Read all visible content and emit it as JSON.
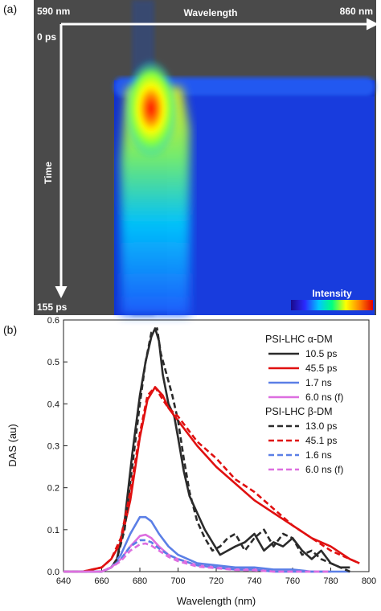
{
  "panel_a": {
    "label": "(a)",
    "wl_start": "590 nm",
    "wl_axis": "Wavelength",
    "wl_end": "860 nm",
    "time_start": "0 ps",
    "time_axis": "Time",
    "time_end": "155 ps",
    "intensity_label": "Intensity",
    "colormap": [
      "#1a0a8a",
      "#2a2aff",
      "#00c8ff",
      "#00ff80",
      "#ffff00",
      "#ff8000",
      "#e00000"
    ],
    "background_color": "#4a4a4a"
  },
  "panel_b": {
    "label": "(b)"
  },
  "chart_data": {
    "type": "line",
    "xlabel": "Wavelength (nm)",
    "ylabel": "DAS (au)",
    "xlim": [
      640,
      800
    ],
    "ylim": [
      0,
      0.6
    ],
    "xticks": [
      "640",
      "660",
      "680",
      "700",
      "720",
      "740",
      "760",
      "780",
      "800"
    ],
    "yticks": [
      "0.0",
      "0.1",
      "0.2",
      "0.3",
      "0.4",
      "0.5",
      "0.6"
    ],
    "grid": false,
    "legend_position": "top-right",
    "legend_groups": [
      {
        "heading": "PSI-LHC α-DM"
      },
      {
        "heading": "PSI-LHC β-DM"
      }
    ],
    "series": [
      {
        "name": "10.5 ps",
        "group": 0,
        "color": "#2b2b2b",
        "dash": false,
        "x": [
          640,
          650,
          660,
          665,
          668,
          672,
          676,
          680,
          683,
          686,
          688,
          690,
          692,
          695,
          698,
          700,
          703,
          706,
          710,
          714,
          718,
          722,
          726,
          730,
          735,
          740,
          745,
          750,
          755,
          760,
          765,
          770,
          775,
          780,
          785,
          790
        ],
        "y": [
          0.0,
          0.0,
          0.0,
          0.01,
          0.03,
          0.12,
          0.28,
          0.42,
          0.5,
          0.56,
          0.58,
          0.55,
          0.47,
          0.4,
          0.37,
          0.32,
          0.24,
          0.18,
          0.14,
          0.1,
          0.07,
          0.04,
          0.05,
          0.06,
          0.07,
          0.09,
          0.05,
          0.07,
          0.06,
          0.08,
          0.05,
          0.03,
          0.05,
          0.02,
          0.01,
          0.01
        ]
      },
      {
        "name": "45.5 ps",
        "group": 0,
        "color": "#e01010",
        "dash": false,
        "x": [
          640,
          650,
          660,
          665,
          670,
          675,
          680,
          684,
          688,
          692,
          695,
          700,
          705,
          710,
          720,
          730,
          740,
          750,
          760,
          770,
          780,
          790,
          795
        ],
        "y": [
          0.0,
          0.0,
          0.01,
          0.03,
          0.07,
          0.17,
          0.32,
          0.41,
          0.44,
          0.42,
          0.39,
          0.36,
          0.33,
          0.3,
          0.25,
          0.21,
          0.17,
          0.14,
          0.11,
          0.08,
          0.06,
          0.03,
          0.02
        ]
      },
      {
        "name": "1.7 ns",
        "group": 0,
        "color": "#5b7fe6",
        "dash": false,
        "x": [
          640,
          660,
          665,
          670,
          675,
          680,
          683,
          686,
          690,
          695,
          700,
          710,
          720,
          730,
          740,
          750,
          760,
          770,
          780,
          790
        ],
        "y": [
          0.0,
          0.0,
          0.01,
          0.04,
          0.09,
          0.13,
          0.13,
          0.12,
          0.09,
          0.06,
          0.04,
          0.02,
          0.015,
          0.01,
          0.01,
          0.005,
          0.005,
          0.0,
          0.0,
          0.0
        ]
      },
      {
        "name": "6.0 ns (f)",
        "group": 0,
        "color": "#dd6ee0",
        "dash": false,
        "x": [
          640,
          660,
          665,
          670,
          675,
          680,
          683,
          686,
          690,
          695,
          700,
          710,
          720,
          730,
          740,
          750,
          760,
          770,
          780
        ],
        "y": [
          0.0,
          0.0,
          0.01,
          0.03,
          0.06,
          0.085,
          0.088,
          0.08,
          0.06,
          0.04,
          0.03,
          0.015,
          0.01,
          0.005,
          0.005,
          0.0,
          0.0,
          0.0,
          0.0
        ]
      },
      {
        "name": "13.0 ps",
        "group": 1,
        "color": "#2b2b2b",
        "dash": true,
        "x": [
          640,
          650,
          660,
          665,
          668,
          672,
          676,
          680,
          683,
          686,
          689,
          691,
          694,
          697,
          700,
          703,
          706,
          710,
          714,
          718,
          722,
          726,
          730,
          735,
          740,
          745,
          750,
          755,
          760,
          765,
          770,
          775,
          780,
          785,
          790
        ],
        "y": [
          0.0,
          0.0,
          0.0,
          0.01,
          0.03,
          0.1,
          0.25,
          0.4,
          0.5,
          0.57,
          0.58,
          0.52,
          0.47,
          0.42,
          0.36,
          0.27,
          0.19,
          0.12,
          0.08,
          0.05,
          0.06,
          0.08,
          0.09,
          0.05,
          0.08,
          0.1,
          0.06,
          0.09,
          0.08,
          0.04,
          0.05,
          0.03,
          0.02,
          0.01,
          0.0
        ]
      },
      {
        "name": "45.1 ps",
        "group": 1,
        "color": "#e01010",
        "dash": true,
        "x": [
          640,
          650,
          660,
          665,
          670,
          675,
          680,
          684,
          688,
          692,
          695,
          700,
          705,
          710,
          720,
          730,
          740,
          750,
          760,
          770,
          780,
          790,
          795
        ],
        "y": [
          0.0,
          0.0,
          0.01,
          0.03,
          0.08,
          0.19,
          0.33,
          0.42,
          0.44,
          0.41,
          0.39,
          0.37,
          0.34,
          0.31,
          0.27,
          0.22,
          0.19,
          0.15,
          0.11,
          0.08,
          0.05,
          0.03,
          0.02
        ]
      },
      {
        "name": "1.6 ns",
        "group": 1,
        "color": "#5b7fe6",
        "dash": true,
        "x": [
          640,
          660,
          665,
          670,
          675,
          680,
          683,
          686,
          690,
          695,
          700,
          710,
          720,
          730,
          740,
          750,
          760,
          770,
          780
        ],
        "y": [
          0.0,
          0.0,
          0.01,
          0.03,
          0.06,
          0.075,
          0.075,
          0.07,
          0.055,
          0.04,
          0.03,
          0.015,
          0.01,
          0.005,
          0.005,
          0.0,
          0.0,
          0.0,
          0.0
        ]
      },
      {
        "name": "6.0 ns (f)",
        "group": 1,
        "color": "#dd6ee0",
        "dash": true,
        "x": [
          640,
          660,
          665,
          670,
          675,
          680,
          683,
          686,
          690,
          695,
          700,
          710,
          720,
          730,
          740,
          750,
          760,
          770,
          780
        ],
        "y": [
          0.0,
          0.0,
          0.01,
          0.025,
          0.05,
          0.065,
          0.067,
          0.062,
          0.05,
          0.035,
          0.025,
          0.012,
          0.008,
          0.004,
          0.003,
          0.0,
          0.0,
          0.0,
          0.0
        ]
      }
    ]
  }
}
